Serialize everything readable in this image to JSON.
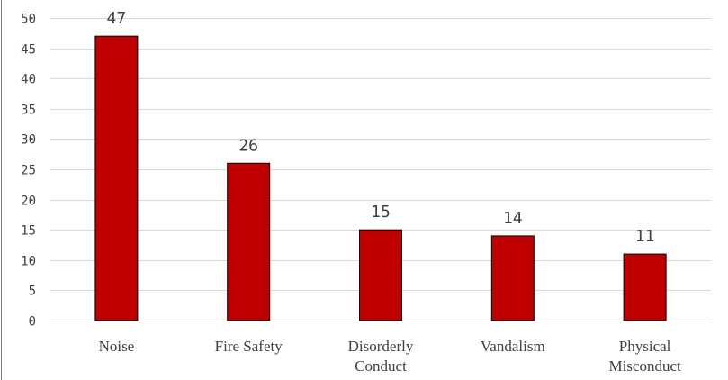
{
  "chart_data": {
    "type": "bar",
    "categories": [
      [
        "Noise"
      ],
      [
        "Fire Safety"
      ],
      [
        "Disorderly",
        "Conduct"
      ],
      [
        "Vandalism"
      ],
      [
        "Physical",
        "Misconduct"
      ]
    ],
    "values": [
      47,
      26,
      15,
      14,
      11
    ],
    "ylim": [
      0,
      50
    ],
    "yticks": [
      0,
      5,
      10,
      15,
      20,
      25,
      30,
      35,
      40,
      45,
      50
    ],
    "grid": true,
    "legend": "none",
    "colors": {
      "bar_fill": "#C00000",
      "bar_stroke": "#000000",
      "grid": "#D9D9D9",
      "text": "#404040",
      "frame": "#7F7F7F"
    }
  }
}
